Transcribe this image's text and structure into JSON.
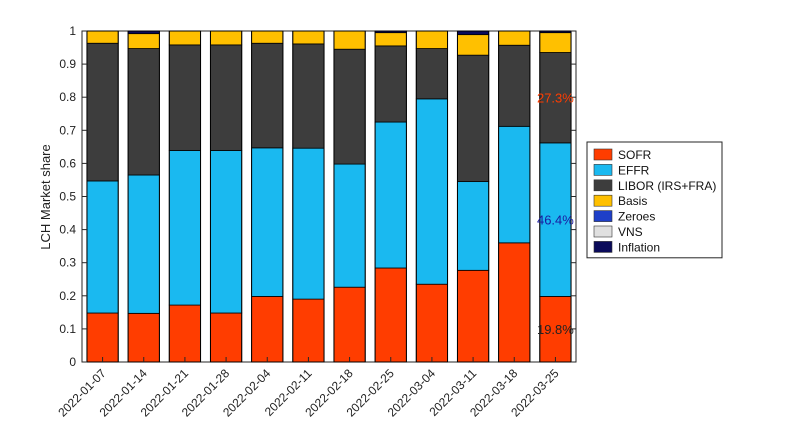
{
  "chart_data": {
    "type": "bar",
    "stacked": true,
    "title": "",
    "xlabel": "",
    "ylabel": "LCH Market share",
    "ylim": [
      0,
      1
    ],
    "yticks": [
      0,
      0.1,
      0.2,
      0.3,
      0.4,
      0.5,
      0.6,
      0.7,
      0.8,
      0.9,
      1
    ],
    "ytick_labels": [
      "0",
      "0.1",
      "0.2",
      "0.3",
      "0.4",
      "0.5",
      "0.6",
      "0.7",
      "0.8",
      "0.9",
      "1"
    ],
    "grid": false,
    "legend_position": "right",
    "categories": [
      "2022-01-07",
      "2022-01-14",
      "2022-01-21",
      "2022-01-28",
      "2022-02-04",
      "2022-02-11",
      "2022-02-18",
      "2022-02-25",
      "2022-03-04",
      "2022-03-11",
      "2022-03-18",
      "2022-03-25"
    ],
    "series": [
      {
        "name": "SOFR",
        "color": "#ff3d00",
        "values": [
          0.148,
          0.147,
          0.172,
          0.148,
          0.198,
          0.19,
          0.226,
          0.284,
          0.235,
          0.277,
          0.36,
          0.198
        ]
      },
      {
        "name": "EFFR",
        "color": "#1ab9f0",
        "values": [
          0.399,
          0.418,
          0.467,
          0.491,
          0.449,
          0.456,
          0.372,
          0.441,
          0.56,
          0.268,
          0.352,
          0.464
        ]
      },
      {
        "name": "LIBOR (IRS+FRA)",
        "color": "#3d3d3d",
        "values": [
          0.416,
          0.382,
          0.319,
          0.319,
          0.316,
          0.315,
          0.347,
          0.23,
          0.152,
          0.382,
          0.245,
          0.273
        ]
      },
      {
        "name": "Basis",
        "color": "#ffc000",
        "values": [
          0.037,
          0.045,
          0.042,
          0.042,
          0.037,
          0.039,
          0.055,
          0.04,
          0.053,
          0.062,
          0.043,
          0.06
        ]
      },
      {
        "name": "Zeroes",
        "color": "#1e3fc8",
        "values": [
          0,
          0,
          0,
          0,
          0,
          0,
          0,
          0,
          0,
          0,
          0,
          0
        ]
      },
      {
        "name": "VNS",
        "color": "#e0e0e0",
        "values": [
          0,
          0,
          0,
          0,
          0,
          0,
          0,
          0,
          0,
          0,
          0,
          0
        ]
      },
      {
        "name": "Inflation",
        "color": "#0a0a5a",
        "values": [
          0,
          0.008,
          0,
          0,
          0,
          0,
          0,
          0.005,
          0,
          0.011,
          0,
          0.005
        ]
      }
    ],
    "annotations": [
      {
        "text": "27.3%",
        "series": "LIBOR (IRS+FRA)",
        "category": "2022-03-25",
        "color": "#ff3d00"
      },
      {
        "text": "46.4%",
        "series": "EFFR",
        "category": "2022-03-25",
        "color": "#1a1aa0"
      },
      {
        "text": "19.8%",
        "series": "SOFR",
        "category": "2022-03-25",
        "color": "#222222"
      }
    ]
  }
}
